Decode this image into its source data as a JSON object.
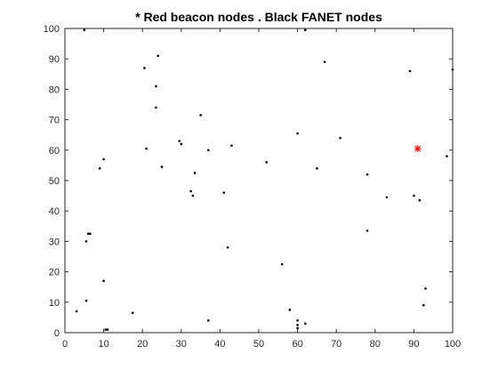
{
  "chart_data": {
    "type": "scatter",
    "title": "* Red beacon nodes . Black FANET nodes",
    "xlabel": "",
    "ylabel": "",
    "xlim": [
      0,
      100
    ],
    "ylim": [
      0,
      100
    ],
    "xticks": [
      0,
      10,
      20,
      30,
      40,
      50,
      60,
      70,
      80,
      90,
      100
    ],
    "yticks": [
      0,
      10,
      20,
      30,
      40,
      50,
      60,
      70,
      80,
      90,
      100
    ],
    "grid": false,
    "box": true,
    "series": [
      {
        "marker": "dot",
        "color": "#000000",
        "points": [
          [
            5,
            99.5
          ],
          [
            62,
            99.5
          ],
          [
            24,
            91
          ],
          [
            67,
            89
          ],
          [
            89,
            86
          ],
          [
            100,
            86.5
          ],
          [
            20.5,
            87
          ],
          [
            23.5,
            81
          ],
          [
            23.5,
            74
          ],
          [
            35,
            71.5
          ],
          [
            60,
            65.5
          ],
          [
            71,
            64
          ],
          [
            29.5,
            63
          ],
          [
            30,
            62
          ],
          [
            21,
            60.5
          ],
          [
            37,
            60
          ],
          [
            43,
            61.5
          ],
          [
            98.5,
            58
          ],
          [
            10,
            57
          ],
          [
            52,
            56
          ],
          [
            9,
            54
          ],
          [
            25,
            54.5
          ],
          [
            65,
            54
          ],
          [
            33.5,
            52.5
          ],
          [
            78,
            52
          ],
          [
            32.5,
            46.5
          ],
          [
            33,
            45
          ],
          [
            41,
            46
          ],
          [
            90,
            45
          ],
          [
            91.5,
            43.5
          ],
          [
            83,
            44.5
          ],
          [
            6,
            32.5
          ],
          [
            6.5,
            32.5
          ],
          [
            5.5,
            30
          ],
          [
            78,
            33.5
          ],
          [
            42,
            28
          ],
          [
            56,
            22.5
          ],
          [
            10,
            17
          ],
          [
            93,
            14.5
          ],
          [
            5.5,
            10.5
          ],
          [
            3,
            7
          ],
          [
            17.5,
            6.5
          ],
          [
            58,
            7.5
          ],
          [
            92.5,
            9
          ],
          [
            37,
            4
          ],
          [
            60,
            4
          ],
          [
            60,
            2.5
          ],
          [
            62,
            3
          ],
          [
            10.5,
            1
          ],
          [
            11,
            1
          ],
          [
            60,
            1.5
          ]
        ]
      },
      {
        "marker": "asterisk",
        "color": "#ff0000",
        "points": [
          [
            91,
            60.5
          ]
        ]
      }
    ]
  }
}
